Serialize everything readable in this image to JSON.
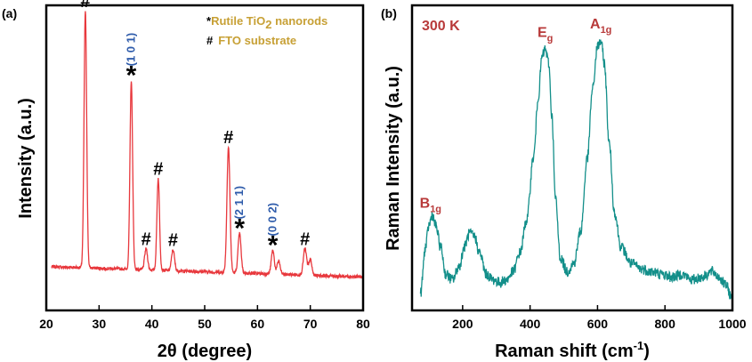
{
  "panels": {
    "a": {
      "tag": "(a)",
      "xlabel": "2θ (degree)",
      "ylabel": "Intensity (a.u.)",
      "legend": [
        {
          "symbol": "*",
          "text_main": "Rutile TiO",
          "text_sub": "2",
          "text_tail": " nanorods"
        },
        {
          "symbol": "#",
          "text_main": "FTO substrate",
          "text_sub": "",
          "text_tail": ""
        }
      ]
    },
    "b": {
      "tag": "(b)",
      "xlabel_main": "Raman shift (cm",
      "xlabel_sup": "-1",
      "xlabel_tail": ")",
      "ylabel": "Raman Intensity (a.u.)",
      "temperature": "300 K"
    }
  },
  "colors": {
    "xrd_line": "#e8383d",
    "raman_line": "#138f8a",
    "hkl_text": "#2f5cab",
    "legend_text": "#c7a035",
    "raman_labels": "#b83a3a"
  },
  "chart_data": [
    {
      "type": "line",
      "panel": "a",
      "xlabel": "2θ (degree)",
      "ylabel": "Intensity (a.u.)",
      "xlim": [
        20,
        80
      ],
      "ylim": [
        0,
        1
      ],
      "x_ticks": [
        20,
        30,
        40,
        50,
        60,
        70,
        80
      ],
      "y_ticks_shown": false,
      "baseline": 0.12,
      "peaks": [
        {
          "x": 27.4,
          "height": 0.98,
          "width": 0.35,
          "marker": "#",
          "hkl": ""
        },
        {
          "x": 36.1,
          "height": 0.72,
          "width": 0.35,
          "marker": "*",
          "hkl": "(1 0 1)"
        },
        {
          "x": 38.9,
          "height": 0.08,
          "width": 0.4,
          "marker": "#",
          "hkl": ""
        },
        {
          "x": 41.2,
          "height": 0.35,
          "width": 0.35,
          "marker": "#",
          "hkl": ""
        },
        {
          "x": 44.0,
          "height": 0.08,
          "width": 0.4,
          "marker": "#",
          "hkl": ""
        },
        {
          "x": 54.5,
          "height": 0.48,
          "width": 0.4,
          "marker": "#",
          "hkl": ""
        },
        {
          "x": 56.6,
          "height": 0.15,
          "width": 0.4,
          "marker": "*",
          "hkl": "(2 1 1)"
        },
        {
          "x": 62.9,
          "height": 0.09,
          "width": 0.4,
          "marker": "*",
          "hkl": "(0 0 2)"
        },
        {
          "x": 64.0,
          "height": 0.05,
          "width": 0.4,
          "marker": "",
          "hkl": ""
        },
        {
          "x": 69.0,
          "height": 0.1,
          "width": 0.45,
          "marker": "#",
          "hkl": ""
        },
        {
          "x": 70.0,
          "height": 0.06,
          "width": 0.4,
          "marker": "",
          "hkl": ""
        }
      ]
    },
    {
      "type": "line",
      "panel": "b",
      "xlabel": "Raman shift (cm-1)",
      "ylabel": "Raman Intensity (a.u.)",
      "xlim": [
        50,
        1000
      ],
      "ylim": [
        0,
        1
      ],
      "x_ticks": [
        200,
        400,
        600,
        800,
        1000
      ],
      "y_ticks_shown": false,
      "points": [
        [
          75,
          0.05
        ],
        [
          90,
          0.22
        ],
        [
          100,
          0.3
        ],
        [
          110,
          0.34
        ],
        [
          120,
          0.3
        ],
        [
          135,
          0.22
        ],
        [
          150,
          0.12
        ],
        [
          170,
          0.1
        ],
        [
          190,
          0.15
        ],
        [
          205,
          0.22
        ],
        [
          220,
          0.27
        ],
        [
          235,
          0.26
        ],
        [
          250,
          0.2
        ],
        [
          270,
          0.12
        ],
        [
          290,
          0.1
        ],
        [
          310,
          0.09
        ],
        [
          330,
          0.1
        ],
        [
          350,
          0.13
        ],
        [
          370,
          0.2
        ],
        [
          390,
          0.32
        ],
        [
          410,
          0.55
        ],
        [
          425,
          0.78
        ],
        [
          435,
          0.92
        ],
        [
          445,
          0.95
        ],
        [
          455,
          0.9
        ],
        [
          465,
          0.7
        ],
        [
          475,
          0.4
        ],
        [
          490,
          0.18
        ],
        [
          510,
          0.13
        ],
        [
          530,
          0.16
        ],
        [
          550,
          0.28
        ],
        [
          570,
          0.55
        ],
        [
          585,
          0.8
        ],
        [
          600,
          0.96
        ],
        [
          610,
          0.98
        ],
        [
          620,
          0.9
        ],
        [
          635,
          0.6
        ],
        [
          650,
          0.35
        ],
        [
          670,
          0.22
        ],
        [
          700,
          0.16
        ],
        [
          730,
          0.14
        ],
        [
          760,
          0.13
        ],
        [
          790,
          0.12
        ],
        [
          820,
          0.11
        ],
        [
          850,
          0.12
        ],
        [
          880,
          0.1
        ],
        [
          910,
          0.11
        ],
        [
          940,
          0.13
        ],
        [
          960,
          0.11
        ],
        [
          980,
          0.08
        ],
        [
          1000,
          0.03
        ]
      ],
      "annotations": [
        {
          "x": 105,
          "label": "B",
          "sub": "1g"
        },
        {
          "x": 445,
          "label": "E",
          "sub": "g"
        },
        {
          "x": 610,
          "label": "A",
          "sub": "1g"
        }
      ]
    }
  ]
}
